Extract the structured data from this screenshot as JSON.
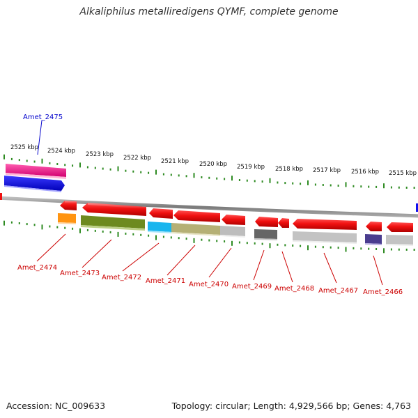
{
  "title": "Alkaliphilus metalliredigens QYMF, complete genome",
  "footer": {
    "accession": "Accession: NC_009633",
    "topology": "Topology: circular; Length: 4,929,566 bp; Genes: 4,763"
  },
  "scale_labels": [
    "2525 kbp",
    "2524 kbp",
    "2523 kbp",
    "2522 kbp",
    "2521 kbp",
    "2520 kbp",
    "2519 kbp",
    "2518 kbp",
    "2517 kbp",
    "2516 kbp",
    "2515 kbp"
  ],
  "gene_labels_forward": [
    "Amet_2475"
  ],
  "gene_labels_reverse": [
    "Amet_2474",
    "Amet_2473",
    "Amet_2472",
    "Amet_2471",
    "Amet_2470",
    "Amet_2469",
    "Amet_2468",
    "Amet_2467",
    "Amet_2466"
  ],
  "colors": {
    "forward_label": "#0000cc",
    "reverse_label": "#cc0000",
    "tick": "#2e8b22",
    "backbone": "#8c8c8c",
    "gene_red": "#ee1111",
    "gene_blue": "#1010ee",
    "gene_pink": "#ee1a8a"
  }
}
